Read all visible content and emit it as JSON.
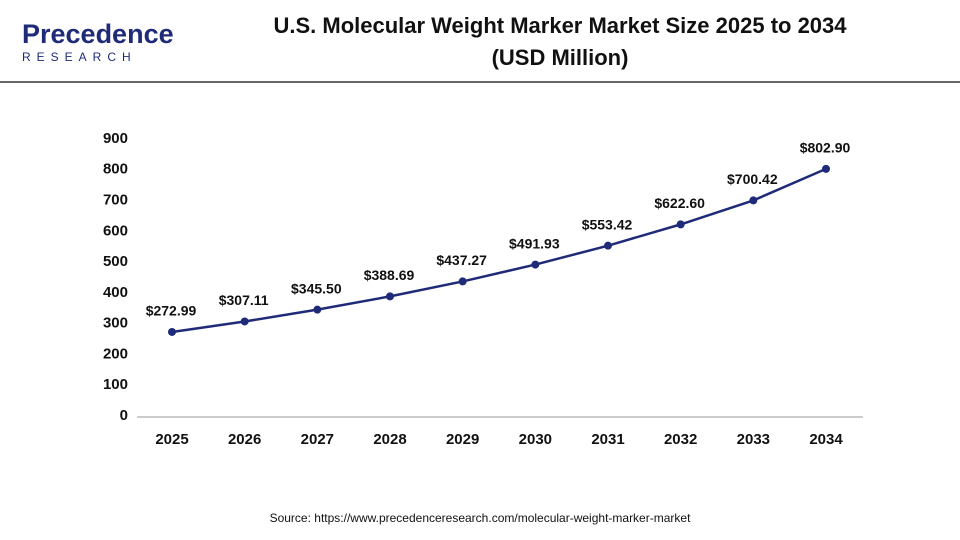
{
  "logo": {
    "name": "Precedence",
    "tagline": "RESEARCH"
  },
  "chart_data": {
    "type": "line",
    "title": "U.S. Molecular Weight Marker Market Size 2025 to 2034",
    "subtitle": "(USD Million)",
    "categories": [
      "2025",
      "2026",
      "2027",
      "2028",
      "2029",
      "2030",
      "2031",
      "2032",
      "2033",
      "2034"
    ],
    "series": [
      {
        "name": "U.S. Molecular Weight Marker Market Size",
        "color": "#1f2b78",
        "values": [
          272.99,
          307.11,
          345.5,
          388.69,
          437.27,
          491.93,
          553.42,
          622.6,
          700.42,
          802.9
        ],
        "value_labels": [
          "$272.99",
          "$307.11",
          "$345.50",
          "$388.69",
          "$437.27",
          "$491.93",
          "$553.42",
          "$622.60",
          "$700.42",
          "$802.90"
        ]
      }
    ],
    "ylim": [
      0,
      900
    ],
    "yticks": [
      0,
      100,
      200,
      300,
      400,
      500,
      600,
      700,
      800,
      900
    ],
    "grid": false,
    "source": "Source: https://www.precedenceresearch.com/molecular-weight-marker-market"
  }
}
